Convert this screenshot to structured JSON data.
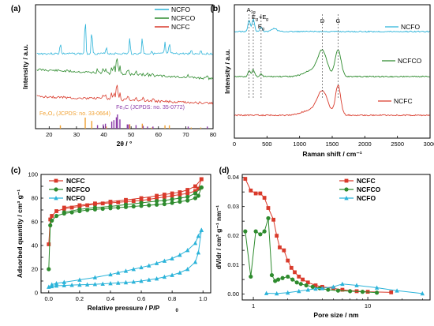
{
  "chart_data": [
    {
      "panel": "(a)",
      "type": "line",
      "xlabel": "2θ / °",
      "ylabel": "Intensity / a.u.",
      "xlim": [
        15,
        80
      ],
      "xticks": [
        20,
        30,
        40,
        50,
        60,
        70,
        80
      ],
      "legend_placement": "top-right",
      "legend": [
        "NCFO",
        "NCFCO",
        "NCFC"
      ],
      "colors": {
        "NCFO": "#2bb3d9",
        "NCFCO": "#2e8b2e",
        "NCFC": "#d93a2b",
        "ref_fe2o3": "#f0a030",
        "ref_fe3c": "#8a3aa8"
      },
      "reference_labels": {
        "fe2o3": "Fe₂O₃ (JCPDS: no. 33-0664)",
        "fe3c": "Fe₃C (JCPDS: no. 35-0772)"
      },
      "fe2o3_sticks": [
        {
          "x": 24.1,
          "h": 0.3
        },
        {
          "x": 33.2,
          "h": 1.0
        },
        {
          "x": 35.6,
          "h": 0.7
        },
        {
          "x": 40.9,
          "h": 0.2
        },
        {
          "x": 49.5,
          "h": 0.4
        },
        {
          "x": 54.1,
          "h": 0.45
        },
        {
          "x": 57.6,
          "h": 0.1
        },
        {
          "x": 62.4,
          "h": 0.3
        },
        {
          "x": 64.0,
          "h": 0.3
        },
        {
          "x": 72.0,
          "h": 0.1
        },
        {
          "x": 75.5,
          "h": 0.1
        }
      ],
      "fe3c_sticks": [
        {
          "x": 37.7,
          "h": 0.25
        },
        {
          "x": 39.8,
          "h": 0.3
        },
        {
          "x": 40.6,
          "h": 0.35
        },
        {
          "x": 42.9,
          "h": 0.5
        },
        {
          "x": 43.7,
          "h": 0.6
        },
        {
          "x": 44.6,
          "h": 0.8
        },
        {
          "x": 45.0,
          "h": 1.0
        },
        {
          "x": 45.9,
          "h": 0.65
        },
        {
          "x": 48.6,
          "h": 0.3
        },
        {
          "x": 49.1,
          "h": 0.3
        },
        {
          "x": 51.8,
          "h": 0.25
        },
        {
          "x": 54.4,
          "h": 0.2
        },
        {
          "x": 56.0,
          "h": 0.15
        },
        {
          "x": 58.0,
          "h": 0.15
        },
        {
          "x": 70.9,
          "h": 0.15
        },
        {
          "x": 77.9,
          "h": 0.15
        }
      ]
    },
    {
      "panel": "(b)",
      "type": "line",
      "xlabel": "Raman shift / cm⁻¹",
      "ylabel": "Intensity / a.u.",
      "xlim": [
        0,
        3000
      ],
      "xticks": [
        0,
        500,
        1000,
        1500,
        2000,
        2500,
        3000
      ],
      "series": [
        "NCFO",
        "NCFCO",
        "NCFC"
      ],
      "colors": {
        "NCFO": "#2bb3d9",
        "NCFCO": "#2e8b2e",
        "NCFC": "#d93a2b"
      },
      "annotations": {
        "a1g": "A",
        "a1g_sub": "1g",
        "eg_eg": "E",
        "eg_sub": "g",
        "plus": "+E",
        "eg_sub2": "g",
        "eg2": "E",
        "eg2_sub": "g",
        "d": "D",
        "g": "G"
      },
      "peak_positions": {
        "A1g": 225,
        "Eg1": 290,
        "Eg2": 410,
        "D": 1350,
        "G": 1590
      }
    },
    {
      "panel": "(c)",
      "type": "line",
      "xlabel": "Relative pressure / P/P",
      "xlabel_sub": "0",
      "ylabel": "Adsorbed quantity / cm³ g⁻¹",
      "xlim": [
        -0.05,
        1.05
      ],
      "ylim": [
        0,
        100
      ],
      "xticks": [
        0.0,
        0.2,
        0.4,
        0.6,
        0.8,
        1.0
      ],
      "yticks": [
        0,
        10,
        20,
        30,
        40,
        50,
        60,
        70,
        80,
        90,
        100
      ],
      "legend_placement": "top-left",
      "series": [
        {
          "name": "NCFC",
          "color": "#d93a2b",
          "marker": "square",
          "adsorption_x": [
            0.0,
            0.01,
            0.02,
            0.05,
            0.1,
            0.15,
            0.2,
            0.25,
            0.3,
            0.35,
            0.4,
            0.45,
            0.5,
            0.55,
            0.6,
            0.65,
            0.7,
            0.75,
            0.8,
            0.85,
            0.9,
            0.95,
            0.97,
            0.99
          ],
          "adsorption_y": [
            41,
            62,
            65,
            69,
            71,
            72,
            73,
            74,
            75,
            75.5,
            76,
            76.5,
            77,
            77.5,
            78,
            79,
            80,
            81,
            82,
            83,
            84,
            86,
            88,
            96
          ],
          "desorption_x": [
            0.99,
            0.95,
            0.9,
            0.85,
            0.8,
            0.75,
            0.7,
            0.6,
            0.5,
            0.4,
            0.3,
            0.2,
            0.1
          ],
          "desorption_y": [
            96,
            90,
            87,
            85,
            84,
            83,
            82,
            80,
            78.5,
            77,
            75.5,
            74,
            72
          ]
        },
        {
          "name": "NCFCO",
          "color": "#2e8b2e",
          "marker": "circle",
          "adsorption_x": [
            0.0,
            0.01,
            0.02,
            0.05,
            0.1,
            0.15,
            0.2,
            0.25,
            0.3,
            0.35,
            0.4,
            0.45,
            0.5,
            0.55,
            0.6,
            0.65,
            0.7,
            0.75,
            0.8,
            0.85,
            0.9,
            0.95,
            0.97,
            0.99
          ],
          "adsorption_y": [
            20,
            57,
            61,
            65,
            67,
            68,
            69,
            70,
            70.5,
            71,
            71.5,
            72,
            72.5,
            73,
            73.5,
            74,
            74.5,
            75,
            76,
            77,
            78,
            80,
            82,
            89
          ],
          "desorption_x": [
            0.99,
            0.95,
            0.9,
            0.85,
            0.8,
            0.75,
            0.7,
            0.6,
            0.5,
            0.4,
            0.3,
            0.2,
            0.1
          ],
          "desorption_y": [
            89,
            84,
            81,
            80,
            79,
            78,
            77.5,
            76,
            74.5,
            73,
            72,
            70.5,
            68
          ]
        },
        {
          "name": "NCFO",
          "color": "#2bb3d9",
          "marker": "triangle",
          "adsorption_x": [
            0.0,
            0.02,
            0.05,
            0.1,
            0.15,
            0.2,
            0.25,
            0.3,
            0.35,
            0.4,
            0.45,
            0.5,
            0.55,
            0.6,
            0.65,
            0.7,
            0.75,
            0.8,
            0.85,
            0.9,
            0.95,
            0.97,
            0.99
          ],
          "adsorption_y": [
            5,
            5.5,
            6,
            6.3,
            6.6,
            6.8,
            7,
            7.3,
            7.6,
            8,
            8.4,
            8.8,
            9.3,
            10,
            11,
            12,
            13.5,
            15,
            17,
            20,
            26,
            34,
            53
          ],
          "desorption_x": [
            0.99,
            0.97,
            0.95,
            0.9,
            0.85,
            0.8,
            0.75,
            0.7,
            0.65,
            0.6,
            0.55,
            0.5,
            0.45,
            0.4,
            0.3,
            0.2,
            0.1,
            0.05,
            0.02
          ],
          "desorption_y": [
            53,
            48,
            42,
            36,
            32,
            29,
            27,
            25,
            23,
            21.5,
            20,
            18.5,
            17,
            15.5,
            13,
            11,
            9,
            8,
            7
          ]
        }
      ]
    },
    {
      "panel": "(d)",
      "type": "line",
      "xlabel": "Pore size / nm",
      "ylabel": "dV/dr / cm³ g⁻¹ nm⁻¹",
      "xscale": "log",
      "xlim": [
        0.8,
        35
      ],
      "ylim": [
        -0.002,
        0.041
      ],
      "xticks": [
        1,
        10
      ],
      "yticks": [
        0.0,
        0.005,
        0.01,
        0.015,
        0.02,
        0.025,
        0.03,
        0.035,
        0.04
      ],
      "ytick_labels": [
        "0.00",
        "0.01",
        "0.02",
        "0.03",
        "0.04"
      ],
      "legend_placement": "top-right",
      "series": [
        {
          "name": "NCFC",
          "color": "#d93a2b",
          "marker": "square",
          "x": [
            0.85,
            0.95,
            1.05,
            1.15,
            1.25,
            1.35,
            1.5,
            1.6,
            1.7,
            1.85,
            2.0,
            2.15,
            2.3,
            2.5,
            2.7,
            3.0,
            3.5,
            4.0,
            5.0,
            6.0,
            8.0,
            10,
            16
          ],
          "y": [
            0.0395,
            0.0355,
            0.0345,
            0.0345,
            0.033,
            0.0295,
            0.0255,
            0.02,
            0.016,
            0.015,
            0.0115,
            0.009,
            0.0075,
            0.006,
            0.005,
            0.004,
            0.003,
            0.0025,
            0.002,
            0.0015,
            0.001,
            0.0008,
            0.0006
          ]
        },
        {
          "name": "NCFCO",
          "color": "#2e8b2e",
          "marker": "circle",
          "x": [
            0.85,
            0.95,
            1.05,
            1.15,
            1.25,
            1.35,
            1.45,
            1.55,
            1.65,
            1.8,
            2.0,
            2.2,
            2.4,
            2.6,
            2.9,
            3.3,
            3.8,
            4.5,
            5.5,
            7.0,
            9.0,
            12
          ],
          "y": [
            0.0215,
            0.006,
            0.0215,
            0.0205,
            0.0215,
            0.026,
            0.0065,
            0.0045,
            0.005,
            0.0055,
            0.006,
            0.005,
            0.004,
            0.0035,
            0.003,
            0.0025,
            0.002,
            0.0015,
            0.0012,
            0.001,
            0.0008,
            0.0005
          ]
        },
        {
          "name": "NCFO",
          "color": "#2bb3d9",
          "marker": "triangle",
          "x": [
            1.3,
            1.6,
            2.0,
            2.5,
            3.0,
            3.5,
            4.0,
            5.0,
            6.0,
            8.0,
            12,
            18,
            30
          ],
          "y": [
            0.0003,
            0.0002,
            0.0005,
            0.001,
            0.0015,
            0.0018,
            0.002,
            0.0025,
            0.0035,
            0.003,
            0.0022,
            0.0012,
            0.0002
          ]
        }
      ]
    }
  ]
}
